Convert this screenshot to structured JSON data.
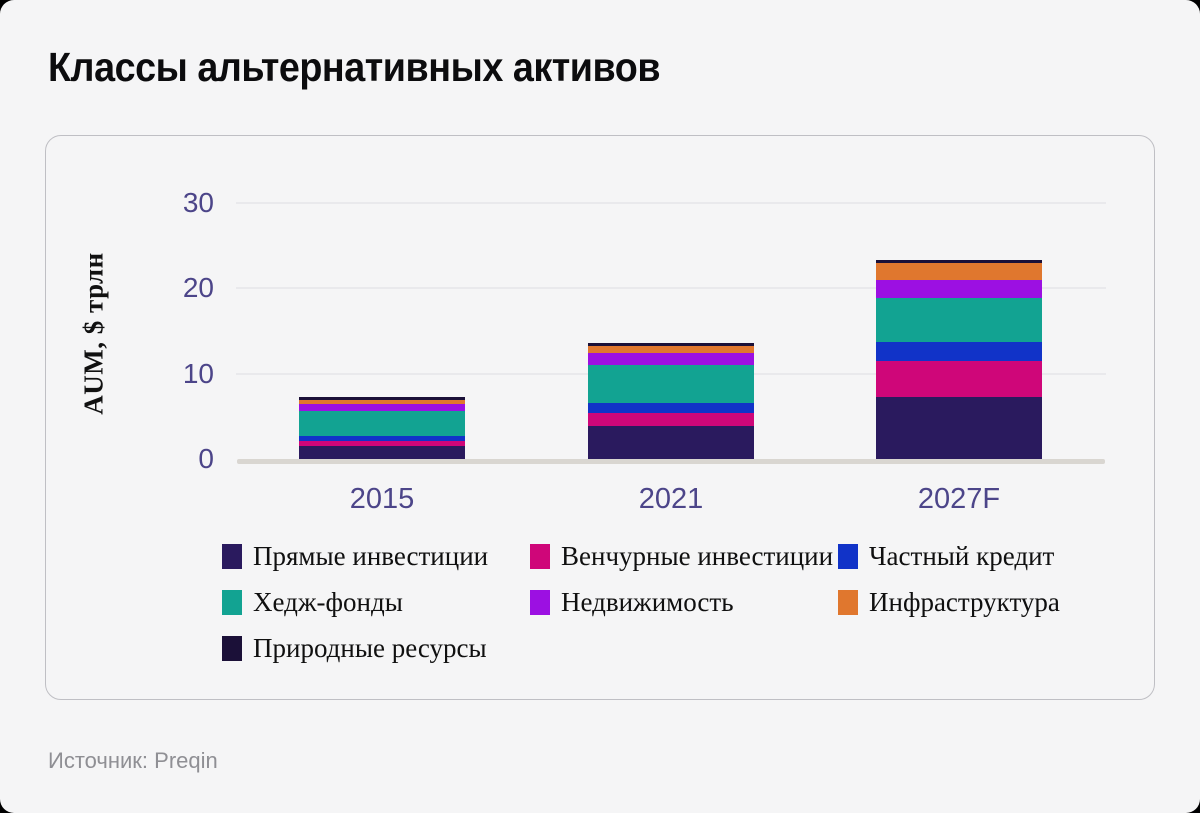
{
  "title": "Классы альтернативных активов",
  "source_note": "Источник: Preqin",
  "chart_data": {
    "type": "bar",
    "stacked": true,
    "title": "Классы альтернативных активов",
    "xlabel": "",
    "ylabel": "AUM, $ трлн",
    "categories": [
      "2015",
      "2021",
      "2027F"
    ],
    "yticks": [
      0,
      10,
      20,
      30
    ],
    "ylim": [
      0,
      33
    ],
    "grid": true,
    "legend_position": "bottom",
    "series": [
      {
        "name": "Прямые инвестиции",
        "color": "#2a1a5e",
        "values": [
          1.5,
          3.9,
          7.3
        ]
      },
      {
        "name": "Венчурные инвестиции",
        "color": "#cf0679",
        "values": [
          0.6,
          1.5,
          4.2
        ]
      },
      {
        "name": "Частный кредит",
        "color": "#1133c8",
        "values": [
          0.6,
          1.2,
          2.2
        ]
      },
      {
        "name": "Хедж-фонды",
        "color": "#12a392",
        "values": [
          2.9,
          4.4,
          5.1
        ]
      },
      {
        "name": "Недвижимость",
        "color": "#9c10e2",
        "values": [
          0.8,
          1.4,
          2.1
        ]
      },
      {
        "name": "Инфраструктура",
        "color": "#e0772e",
        "values": [
          0.5,
          0.8,
          2.0
        ]
      },
      {
        "name": "Природные ресурсы",
        "color": "#1b1038",
        "values": [
          0.3,
          0.4,
          0.4
        ]
      }
    ],
    "totals": [
      7.2,
      13.6,
      23.3
    ],
    "colors": {
      "tick_text": "#4c4589",
      "gridline": "#e9e9ec",
      "axis_baseline": "#d9d6d1",
      "background": "#f5f5f6",
      "card_border": "#bfbfc4"
    }
  }
}
